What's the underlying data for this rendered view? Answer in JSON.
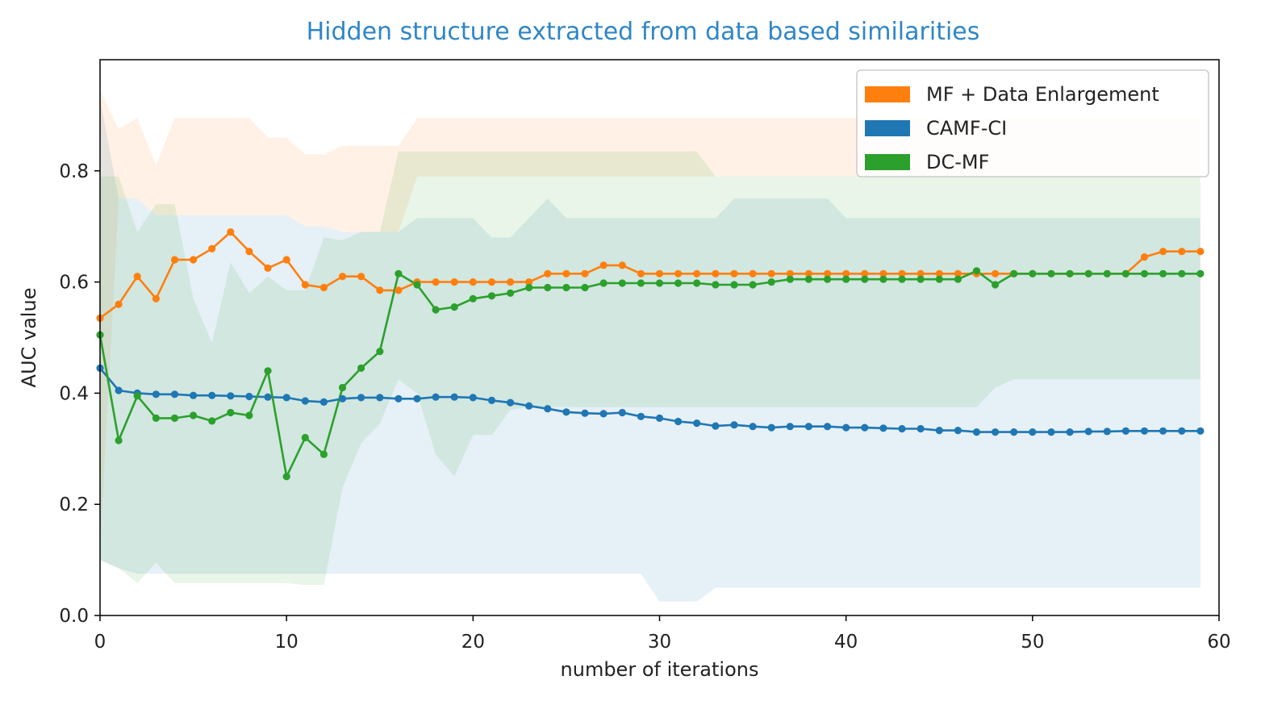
{
  "chart_data": {
    "type": "line",
    "title": "Hidden structure extracted from data based similarities",
    "title_color": "#2f86c6",
    "xlabel": "number of iterations",
    "ylabel": "AUC value",
    "xlim": [
      0,
      60
    ],
    "ylim": [
      0,
      1.0
    ],
    "xticks": [
      0,
      10,
      20,
      30,
      40,
      50,
      60
    ],
    "yticks": [
      0.0,
      0.2,
      0.4,
      0.6,
      0.8
    ],
    "xtick_labels": [
      "0",
      "10",
      "20",
      "30",
      "40",
      "50",
      "60"
    ],
    "ytick_labels": [
      "0.0",
      "0.2",
      "0.4",
      "0.6",
      "0.8"
    ],
    "legend_position": "upper-right",
    "x": [
      0,
      1,
      2,
      3,
      4,
      5,
      6,
      7,
      8,
      9,
      10,
      11,
      12,
      13,
      14,
      15,
      16,
      17,
      18,
      19,
      20,
      21,
      22,
      23,
      24,
      25,
      26,
      27,
      28,
      29,
      30,
      31,
      32,
      33,
      34,
      35,
      36,
      37,
      38,
      39,
      40,
      41,
      42,
      43,
      44,
      45,
      46,
      47,
      48,
      49,
      50,
      51,
      52,
      53,
      54,
      55,
      56,
      57,
      58,
      59
    ],
    "series": [
      {
        "name": "MF + Data Enlargement",
        "color": "#ff7f0e",
        "values": [
          0.535,
          0.56,
          0.61,
          0.57,
          0.64,
          0.64,
          0.66,
          0.69,
          0.655,
          0.625,
          0.64,
          0.595,
          0.59,
          0.61,
          0.61,
          0.585,
          0.585,
          0.6,
          0.6,
          0.6,
          0.6,
          0.6,
          0.6,
          0.6,
          0.615,
          0.615,
          0.615,
          0.63,
          0.63,
          0.615,
          0.615,
          0.615,
          0.615,
          0.615,
          0.615,
          0.615,
          0.615,
          0.615,
          0.615,
          0.615,
          0.615,
          0.615,
          0.615,
          0.615,
          0.615,
          0.615,
          0.615,
          0.615,
          0.615,
          0.615,
          0.615,
          0.615,
          0.615,
          0.615,
          0.615,
          0.615,
          0.645,
          0.655,
          0.655,
          0.655
        ],
        "upper": [
          0.945,
          0.875,
          0.895,
          0.81,
          0.895,
          0.895,
          0.895,
          0.895,
          0.895,
          0.86,
          0.86,
          0.83,
          0.83,
          0.845,
          0.845,
          0.845,
          0.845,
          0.895,
          0.895,
          0.895,
          0.895,
          0.895,
          0.895,
          0.895,
          0.895,
          0.895,
          0.895,
          0.895,
          0.895,
          0.895,
          0.895,
          0.895,
          0.895,
          0.895,
          0.895,
          0.895,
          0.895,
          0.895,
          0.895,
          0.895,
          0.895,
          0.895,
          0.895,
          0.895,
          0.895,
          0.895,
          0.895,
          0.895,
          0.895,
          0.895,
          0.895,
          0.895,
          0.895,
          0.895,
          0.895,
          0.895,
          0.895,
          0.895,
          0.895,
          0.895
        ],
        "lower": [
          0.12,
          0.75,
          0.75,
          0.72,
          0.72,
          0.72,
          0.72,
          0.72,
          0.72,
          0.72,
          0.72,
          0.7,
          0.7,
          0.69,
          0.69,
          0.69,
          0.69,
          0.79,
          0.79,
          0.79,
          0.79,
          0.79,
          0.79,
          0.79,
          0.79,
          0.79,
          0.79,
          0.79,
          0.79,
          0.79,
          0.79,
          0.79,
          0.79,
          0.79,
          0.79,
          0.79,
          0.79,
          0.79,
          0.79,
          0.79,
          0.79,
          0.79,
          0.79,
          0.79,
          0.79,
          0.79,
          0.79,
          0.79,
          0.79,
          0.79,
          0.79,
          0.79,
          0.79,
          0.79,
          0.79,
          0.79,
          0.79,
          0.79,
          0.79,
          0.79
        ]
      },
      {
        "name": "CAMF-CI",
        "color": "#1f77b4",
        "values": [
          0.445,
          0.405,
          0.4,
          0.398,
          0.398,
          0.396,
          0.396,
          0.395,
          0.394,
          0.393,
          0.392,
          0.386,
          0.384,
          0.39,
          0.392,
          0.392,
          0.39,
          0.39,
          0.393,
          0.393,
          0.392,
          0.387,
          0.383,
          0.377,
          0.372,
          0.366,
          0.364,
          0.363,
          0.365,
          0.358,
          0.355,
          0.349,
          0.346,
          0.341,
          0.343,
          0.34,
          0.338,
          0.34,
          0.34,
          0.34,
          0.338,
          0.338,
          0.337,
          0.336,
          0.336,
          0.333,
          0.333,
          0.33,
          0.33,
          0.33,
          0.33,
          0.33,
          0.33,
          0.331,
          0.331,
          0.332,
          0.332,
          0.332,
          0.332,
          0.332
        ],
        "upper": [
          0.93,
          0.75,
          0.75,
          0.72,
          0.72,
          0.72,
          0.72,
          0.72,
          0.72,
          0.72,
          0.72,
          0.7,
          0.7,
          0.69,
          0.69,
          0.69,
          0.69,
          0.715,
          0.715,
          0.715,
          0.715,
          0.68,
          0.68,
          0.715,
          0.75,
          0.715,
          0.715,
          0.715,
          0.715,
          0.715,
          0.715,
          0.715,
          0.715,
          0.715,
          0.75,
          0.75,
          0.75,
          0.75,
          0.75,
          0.75,
          0.715,
          0.715,
          0.715,
          0.715,
          0.715,
          0.715,
          0.715,
          0.715,
          0.715,
          0.715,
          0.715,
          0.715,
          0.715,
          0.715,
          0.715,
          0.715,
          0.715,
          0.715,
          0.715,
          0.715
        ],
        "lower": [
          0.1,
          0.085,
          0.075,
          0.075,
          0.075,
          0.075,
          0.075,
          0.075,
          0.075,
          0.075,
          0.075,
          0.075,
          0.075,
          0.075,
          0.075,
          0.075,
          0.075,
          0.075,
          0.075,
          0.075,
          0.075,
          0.075,
          0.075,
          0.075,
          0.075,
          0.075,
          0.075,
          0.075,
          0.075,
          0.075,
          0.025,
          0.025,
          0.025,
          0.05,
          0.05,
          0.05,
          0.05,
          0.05,
          0.05,
          0.05,
          0.05,
          0.05,
          0.05,
          0.05,
          0.05,
          0.05,
          0.05,
          0.05,
          0.05,
          0.05,
          0.05,
          0.05,
          0.05,
          0.05,
          0.05,
          0.05,
          0.05,
          0.05,
          0.05,
          0.05
        ]
      },
      {
        "name": "DC-MF",
        "color": "#2ca02c",
        "values": [
          0.505,
          0.315,
          0.395,
          0.355,
          0.355,
          0.36,
          0.35,
          0.365,
          0.36,
          0.44,
          0.25,
          0.32,
          0.29,
          0.41,
          0.445,
          0.475,
          0.615,
          0.595,
          0.55,
          0.555,
          0.57,
          0.575,
          0.58,
          0.59,
          0.59,
          0.59,
          0.59,
          0.598,
          0.598,
          0.598,
          0.598,
          0.598,
          0.598,
          0.595,
          0.595,
          0.595,
          0.6,
          0.605,
          0.605,
          0.605,
          0.605,
          0.605,
          0.605,
          0.605,
          0.605,
          0.605,
          0.605,
          0.62,
          0.595,
          0.615,
          0.615,
          0.615,
          0.615,
          0.615,
          0.615,
          0.615,
          0.615,
          0.615,
          0.615,
          0.615
        ],
        "upper": [
          0.79,
          0.79,
          0.69,
          0.74,
          0.74,
          0.57,
          0.49,
          0.635,
          0.58,
          0.61,
          0.585,
          0.585,
          0.68,
          0.675,
          0.69,
          0.69,
          0.835,
          0.835,
          0.835,
          0.835,
          0.835,
          0.835,
          0.835,
          0.835,
          0.835,
          0.835,
          0.835,
          0.835,
          0.835,
          0.835,
          0.835,
          0.835,
          0.835,
          0.79,
          0.79,
          0.79,
          0.79,
          0.79,
          0.79,
          0.79,
          0.79,
          0.79,
          0.79,
          0.79,
          0.79,
          0.79,
          0.79,
          0.79,
          0.79,
          0.79,
          0.79,
          0.79,
          0.79,
          0.79,
          0.79,
          0.79,
          0.79,
          0.79,
          0.79,
          0.79
        ],
        "lower": [
          0.1,
          0.085,
          0.058,
          0.095,
          0.058,
          0.058,
          0.058,
          0.058,
          0.058,
          0.058,
          0.058,
          0.055,
          0.055,
          0.23,
          0.31,
          0.345,
          0.425,
          0.4,
          0.29,
          0.25,
          0.325,
          0.325,
          0.37,
          0.375,
          0.375,
          0.375,
          0.375,
          0.375,
          0.375,
          0.375,
          0.375,
          0.375,
          0.375,
          0.375,
          0.375,
          0.375,
          0.375,
          0.375,
          0.375,
          0.375,
          0.375,
          0.375,
          0.375,
          0.375,
          0.375,
          0.375,
          0.375,
          0.375,
          0.41,
          0.425,
          0.425,
          0.425,
          0.425,
          0.425,
          0.425,
          0.425,
          0.425,
          0.425,
          0.425,
          0.425
        ]
      }
    ]
  }
}
